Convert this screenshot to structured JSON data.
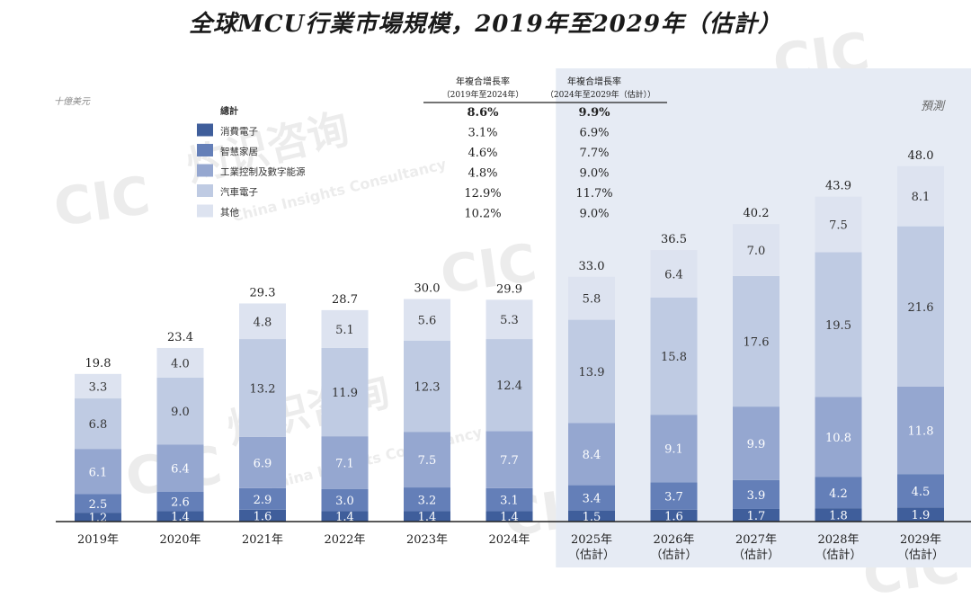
{
  "title": "全球MCU行業市場規模，2019年至2029年（估計）",
  "unit_label": "十億美元",
  "forecast_label": "預測",
  "cagr_header_1": "年複合增長率",
  "cagr_header_1_sub": "（2019年至2024年）",
  "cagr_header_2": "年複合增長率",
  "cagr_header_2_sub": "（2024年至2029年（估計））",
  "legend": [
    {
      "label": "總計",
      "cagr1": "8.6%",
      "cagr2": "9.9%",
      "color": null
    },
    {
      "label": "消費電子",
      "cagr1": "3.1%",
      "cagr2": "6.9%",
      "color": "#3f5e9b"
    },
    {
      "label": "智慧家居",
      "cagr1": "4.6%",
      "cagr2": "7.7%",
      "color": "#647fb8"
    },
    {
      "label": "工業控制及數字能源",
      "cagr1": "4.8%",
      "cagr2": "9.0%",
      "color": "#95a7d0"
    },
    {
      "label": "汽車電子",
      "cagr1": "12.9%",
      "cagr2": "11.7%",
      "color": "#bfcbe3"
    },
    {
      "label": "其他",
      "cagr1": "10.2%",
      "cagr2": "9.0%",
      "color": "#dde3f0"
    }
  ],
  "watermark": {
    "logo": "CIC",
    "cn": "灼识咨询",
    "en": "China Insights Consultancy"
  },
  "chart_data": {
    "type": "bar",
    "stacked": true,
    "categories": [
      "2019年",
      "2020年",
      "2021年",
      "2022年",
      "2023年",
      "2024年",
      "2025年",
      "2026年",
      "2027年",
      "2028年",
      "2029年"
    ],
    "category_sublabels": [
      "",
      "",
      "",
      "",
      "",
      "",
      "（估計）",
      "（估計）",
      "（估計）",
      "（估計）",
      "（估計）"
    ],
    "forecast_start_index": 6,
    "series": [
      {
        "name": "消費電子",
        "values": [
          1.2,
          1.4,
          1.6,
          1.4,
          1.4,
          1.4,
          1.5,
          1.6,
          1.7,
          1.8,
          1.9
        ]
      },
      {
        "name": "智慧家居",
        "values": [
          2.5,
          2.6,
          2.9,
          3.0,
          3.2,
          3.1,
          3.4,
          3.7,
          3.9,
          4.2,
          4.5
        ]
      },
      {
        "name": "工業控制及數字能源",
        "values": [
          6.1,
          6.4,
          6.9,
          7.1,
          7.5,
          7.7,
          8.4,
          9.1,
          9.9,
          10.8,
          11.8
        ]
      },
      {
        "name": "汽車電子",
        "values": [
          6.8,
          9.0,
          13.2,
          11.9,
          12.3,
          12.4,
          13.9,
          15.8,
          17.6,
          19.5,
          21.6
        ]
      },
      {
        "name": "其他",
        "values": [
          3.3,
          4.0,
          4.8,
          5.1,
          5.6,
          5.3,
          5.8,
          6.4,
          7.0,
          7.5,
          8.1
        ]
      }
    ],
    "totals": [
      19.8,
      23.4,
      29.3,
      28.7,
      30.0,
      29.9,
      33.0,
      36.5,
      40.2,
      43.9,
      48.0
    ],
    "ylim": [
      0,
      50
    ],
    "xlabel": "",
    "ylabel": "十億美元"
  }
}
